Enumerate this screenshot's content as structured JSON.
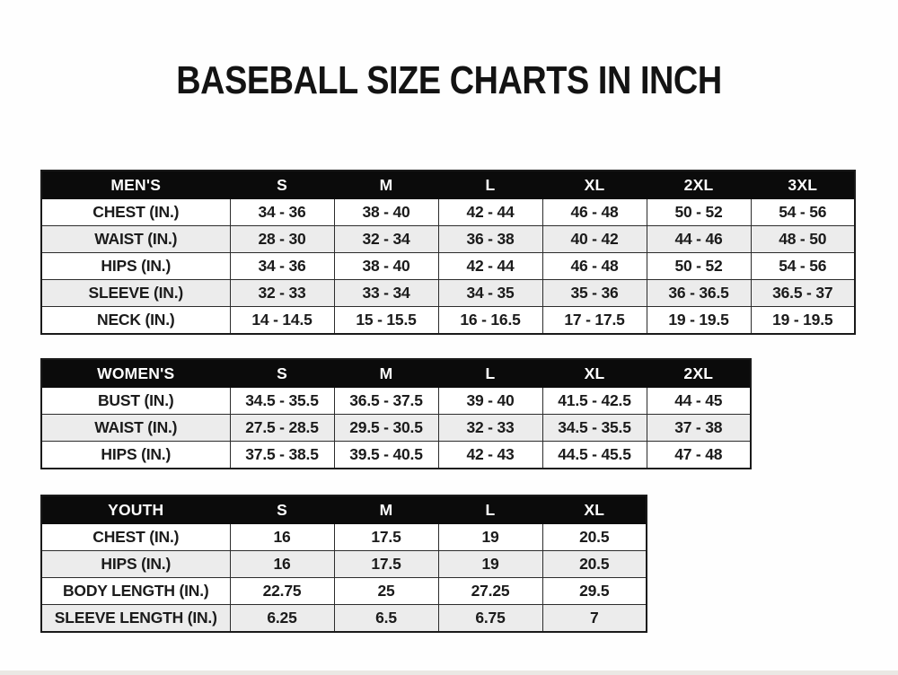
{
  "page": {
    "title": "BASEBALL SIZE CHARTS IN INCH"
  },
  "colors": {
    "header_bg": "#0b0b0b",
    "header_text": "#ffffff",
    "row_stripe": "#ececec",
    "border": "#2c2c2c",
    "text": "#1b1b1b"
  },
  "tables": [
    {
      "name": "mens",
      "header": [
        "MEN'S",
        "S",
        "M",
        "L",
        "XL",
        "2XL",
        "3XL"
      ],
      "rows": [
        [
          "CHEST (IN.)",
          "34 - 36",
          "38 - 40",
          "42 - 44",
          "46 - 48",
          "50 - 52",
          "54 - 56"
        ],
        [
          "WAIST (IN.)",
          "28 - 30",
          "32 - 34",
          "36 - 38",
          "40 - 42",
          "44 - 46",
          "48 - 50"
        ],
        [
          "HIPS (IN.)",
          "34 - 36",
          "38 - 40",
          "42 - 44",
          "46 - 48",
          "50 - 52",
          "54 - 56"
        ],
        [
          "SLEEVE (IN.)",
          "32 - 33",
          "33 - 34",
          "34 - 35",
          "35 - 36",
          "36 - 36.5",
          "36.5 - 37"
        ],
        [
          "NECK (IN.)",
          "14 - 14.5",
          "15 - 15.5",
          "16 - 16.5",
          "17 - 17.5",
          "19 - 19.5",
          "19 - 19.5"
        ]
      ]
    },
    {
      "name": "womens",
      "header": [
        "WOMEN'S",
        "S",
        "M",
        "L",
        "XL",
        "2XL"
      ],
      "rows": [
        [
          "BUST (IN.)",
          "34.5 - 35.5",
          "36.5 - 37.5",
          "39 - 40",
          "41.5 - 42.5",
          "44 - 45"
        ],
        [
          "WAIST (IN.)",
          "27.5 - 28.5",
          "29.5 - 30.5",
          "32 - 33",
          "34.5 - 35.5",
          "37 - 38"
        ],
        [
          "HIPS (IN.)",
          "37.5 - 38.5",
          "39.5 - 40.5",
          "42 - 43",
          "44.5 - 45.5",
          "47 - 48"
        ]
      ]
    },
    {
      "name": "youth",
      "header": [
        "YOUTH",
        "S",
        "M",
        "L",
        "XL"
      ],
      "rows": [
        [
          "CHEST (IN.)",
          "16",
          "17.5",
          "19",
          "20.5"
        ],
        [
          "HIPS (IN.)",
          "16",
          "17.5",
          "19",
          "20.5"
        ],
        [
          "BODY LENGTH (IN.)",
          "22.75",
          "25",
          "27.25",
          "29.5"
        ],
        [
          "SLEEVE LENGTH (IN.)",
          "6.25",
          "6.5",
          "6.75",
          "7"
        ]
      ]
    }
  ]
}
